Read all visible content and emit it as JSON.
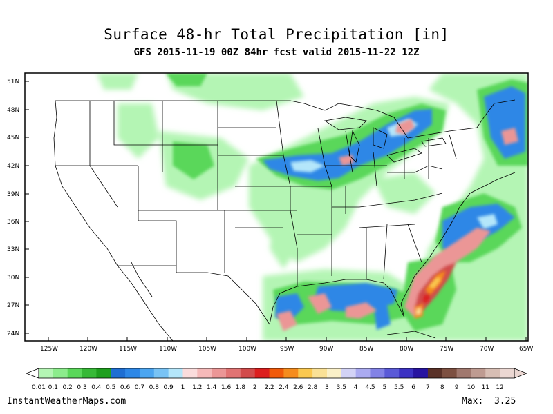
{
  "title": "Surface 48-hr Total Precipitation [in]",
  "subtitle": "GFS 2015-11-19 00Z 84hr fcst valid 2015-11-22 12Z",
  "lat_labels": [
    "51N",
    "48N",
    "45N",
    "42N",
    "39N",
    "36N",
    "33N",
    "30N",
    "27N",
    "24N"
  ],
  "lon_labels": [
    "125W",
    "120W",
    "115W",
    "110W",
    "105W",
    "100W",
    "95W",
    "90W",
    "85W",
    "80W",
    "75W",
    "70W",
    "65W"
  ],
  "colorbar": {
    "labels": [
      "0.01",
      "0.1",
      "0.2",
      "0.3",
      "0.4",
      "0.5",
      "0.6",
      "0.7",
      "0.8",
      "0.9",
      "1",
      "1.2",
      "1.4",
      "1.6",
      "1.8",
      "2",
      "2.2",
      "2.4",
      "2.6",
      "2.8",
      "3",
      "3.5",
      "4",
      "4.5",
      "5",
      "5.5",
      "6",
      "7",
      "8",
      "9",
      "10",
      "11",
      "12"
    ],
    "colors": [
      "#b4f5b4",
      "#8cec8c",
      "#5ad75a",
      "#37b937",
      "#1e9f1e",
      "#1e6ed2",
      "#2d87e6",
      "#4ba5f0",
      "#78c3f5",
      "#b4e6fa",
      "#fadcdc",
      "#f5b9b9",
      "#eb9696",
      "#e17373",
      "#d24b4b",
      "#dc1e1e",
      "#f05a0a",
      "#f58c1e",
      "#fac850",
      "#fae196",
      "#faf0c8",
      "#d2d2f5",
      "#aaaaf0",
      "#8282e6",
      "#5a5ad7",
      "#3c32c3",
      "#2814a0",
      "#5a3228",
      "#7d5041",
      "#a0786e",
      "#be9b91",
      "#d7beb4",
      "#ebd7d2"
    ]
  },
  "footer": {
    "site": "InstantWeatherMaps.com",
    "max_label": "Max:",
    "max_value": "3.25"
  }
}
